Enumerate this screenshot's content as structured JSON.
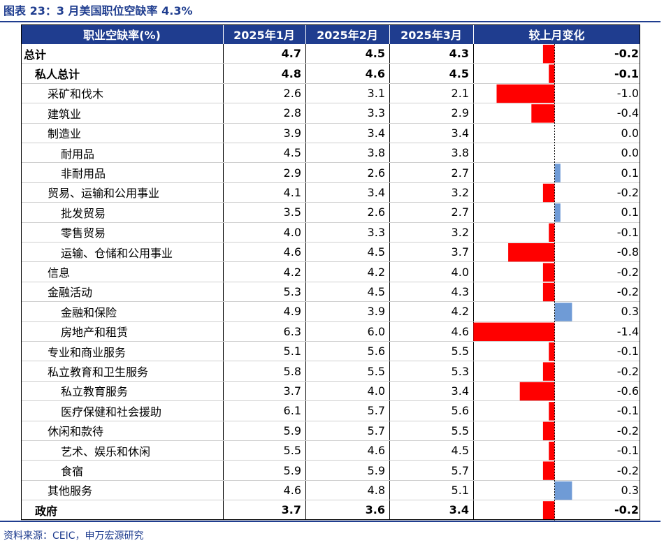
{
  "title": "图表 23：3 月美国职位空缺率 4.3%",
  "source": "资料来源：CEIC，申万宏源研究",
  "colors": {
    "header_bg": "#1f3d8f",
    "negative": "#ff0000",
    "positive": "#6f9bd6",
    "title": "#1f3d8f"
  },
  "chart_data": {
    "type": "table",
    "columns": [
      "职业空缺率(%)",
      "2025年1月",
      "2025年2月",
      "2025年3月",
      "较上月变化"
    ],
    "rows": [
      {
        "name": "总计",
        "level": 0,
        "bold": true,
        "jan": "4.7",
        "feb": "4.5",
        "mar": "4.3",
        "change": "-0.2",
        "change_value": -0.2
      },
      {
        "name": "私人总计",
        "level": 1,
        "bold": true,
        "jan": "4.8",
        "feb": "4.6",
        "mar": "4.5",
        "change": "-0.1",
        "change_value": -0.1
      },
      {
        "name": "采矿和伐木",
        "level": 2,
        "bold": false,
        "jan": "2.6",
        "feb": "3.1",
        "mar": "2.1",
        "change": "-1.0",
        "change_value": -1.0
      },
      {
        "name": "建筑业",
        "level": 2,
        "bold": false,
        "jan": "2.8",
        "feb": "3.3",
        "mar": "2.9",
        "change": "-0.4",
        "change_value": -0.4
      },
      {
        "name": "制造业",
        "level": 2,
        "bold": false,
        "jan": "3.9",
        "feb": "3.4",
        "mar": "3.4",
        "change": "0.0",
        "change_value": 0.0
      },
      {
        "name": "耐用品",
        "level": 3,
        "bold": false,
        "jan": "4.5",
        "feb": "3.8",
        "mar": "3.8",
        "change": "0.0",
        "change_value": 0.0
      },
      {
        "name": "非耐用品",
        "level": 3,
        "bold": false,
        "jan": "2.9",
        "feb": "2.6",
        "mar": "2.7",
        "change": "0.1",
        "change_value": 0.1
      },
      {
        "name": "贸易、运输和公用事业",
        "level": 2,
        "bold": false,
        "jan": "4.1",
        "feb": "3.4",
        "mar": "3.2",
        "change": "-0.2",
        "change_value": -0.2
      },
      {
        "name": "批发贸易",
        "level": 3,
        "bold": false,
        "jan": "3.5",
        "feb": "2.6",
        "mar": "2.7",
        "change": "0.1",
        "change_value": 0.1
      },
      {
        "name": "零售贸易",
        "level": 3,
        "bold": false,
        "jan": "4.0",
        "feb": "3.3",
        "mar": "3.2",
        "change": "-0.1",
        "change_value": -0.1
      },
      {
        "name": "运输、仓储和公用事业",
        "level": 3,
        "bold": false,
        "jan": "4.6",
        "feb": "4.5",
        "mar": "3.7",
        "change": "-0.8",
        "change_value": -0.8
      },
      {
        "name": "信息",
        "level": 2,
        "bold": false,
        "jan": "4.2",
        "feb": "4.2",
        "mar": "4.0",
        "change": "-0.2",
        "change_value": -0.2
      },
      {
        "name": "金融活动",
        "level": 2,
        "bold": false,
        "jan": "5.3",
        "feb": "4.5",
        "mar": "4.3",
        "change": "-0.2",
        "change_value": -0.2
      },
      {
        "name": "金融和保险",
        "level": 3,
        "bold": false,
        "jan": "4.9",
        "feb": "3.9",
        "mar": "4.2",
        "change": "0.3",
        "change_value": 0.3
      },
      {
        "name": "房地产和租赁",
        "level": 3,
        "bold": false,
        "jan": "6.3",
        "feb": "6.0",
        "mar": "4.6",
        "change": "-1.4",
        "change_value": -1.4
      },
      {
        "name": "专业和商业服务",
        "level": 2,
        "bold": false,
        "jan": "5.1",
        "feb": "5.6",
        "mar": "5.5",
        "change": "-0.1",
        "change_value": -0.1
      },
      {
        "name": "私立教育和卫生服务",
        "level": 2,
        "bold": false,
        "jan": "5.8",
        "feb": "5.5",
        "mar": "5.3",
        "change": "-0.2",
        "change_value": -0.2
      },
      {
        "name": "私立教育服务",
        "level": 3,
        "bold": false,
        "jan": "3.7",
        "feb": "4.0",
        "mar": "3.4",
        "change": "-0.6",
        "change_value": -0.6
      },
      {
        "name": "医疗保健和社会援助",
        "level": 3,
        "bold": false,
        "jan": "6.1",
        "feb": "5.7",
        "mar": "5.6",
        "change": "-0.1",
        "change_value": -0.1
      },
      {
        "name": "休闲和款待",
        "level": 2,
        "bold": false,
        "jan": "5.9",
        "feb": "5.7",
        "mar": "5.5",
        "change": "-0.2",
        "change_value": -0.2
      },
      {
        "name": "艺术、娱乐和休闲",
        "level": 3,
        "bold": false,
        "jan": "5.5",
        "feb": "4.6",
        "mar": "4.5",
        "change": "-0.1",
        "change_value": -0.1
      },
      {
        "name": "食宿",
        "level": 3,
        "bold": false,
        "jan": "5.9",
        "feb": "5.9",
        "mar": "5.7",
        "change": "-0.2",
        "change_value": -0.2
      },
      {
        "name": "其他服务",
        "level": 2,
        "bold": false,
        "jan": "4.6",
        "feb": "4.8",
        "mar": "5.1",
        "change": "0.3",
        "change_value": 0.3
      },
      {
        "name": "政府",
        "level": 1,
        "bold": true,
        "jan": "3.7",
        "feb": "3.6",
        "mar": "3.4",
        "change": "-0.2",
        "change_value": -0.2
      }
    ]
  }
}
